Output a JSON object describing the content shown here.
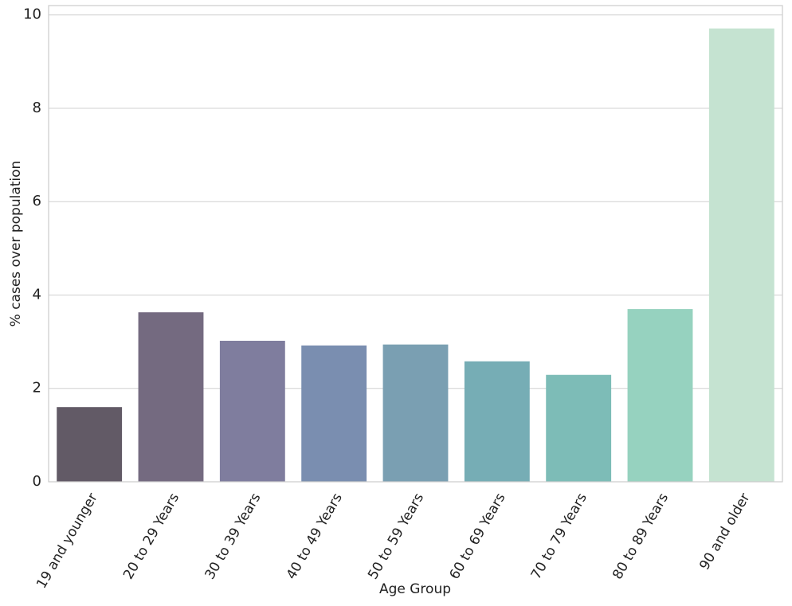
{
  "chart_data": {
    "type": "bar",
    "xlabel": "Age Group",
    "ylabel": "% cases over population",
    "categories": [
      "19 and younger",
      "20 to 29 Years",
      "30 to 39 Years",
      "40 to 49 Years",
      "50 to 59 Years",
      "60 to 69 Years",
      "70 to 79 Years",
      "80 to 89 Years",
      "90 and older"
    ],
    "values": [
      1.6,
      3.63,
      3.02,
      2.92,
      2.94,
      2.58,
      2.29,
      3.7,
      9.71
    ],
    "colors": [
      "#625a66",
      "#746a80",
      "#7f7d9e",
      "#7a8eb0",
      "#7a9fb2",
      "#76adb5",
      "#7dbcb7",
      "#96d2bf",
      "#c5e3d1"
    ],
    "ylim": [
      0,
      10.2
    ],
    "yticks": [
      0,
      2,
      4,
      6,
      8,
      10
    ],
    "grid": true
  }
}
